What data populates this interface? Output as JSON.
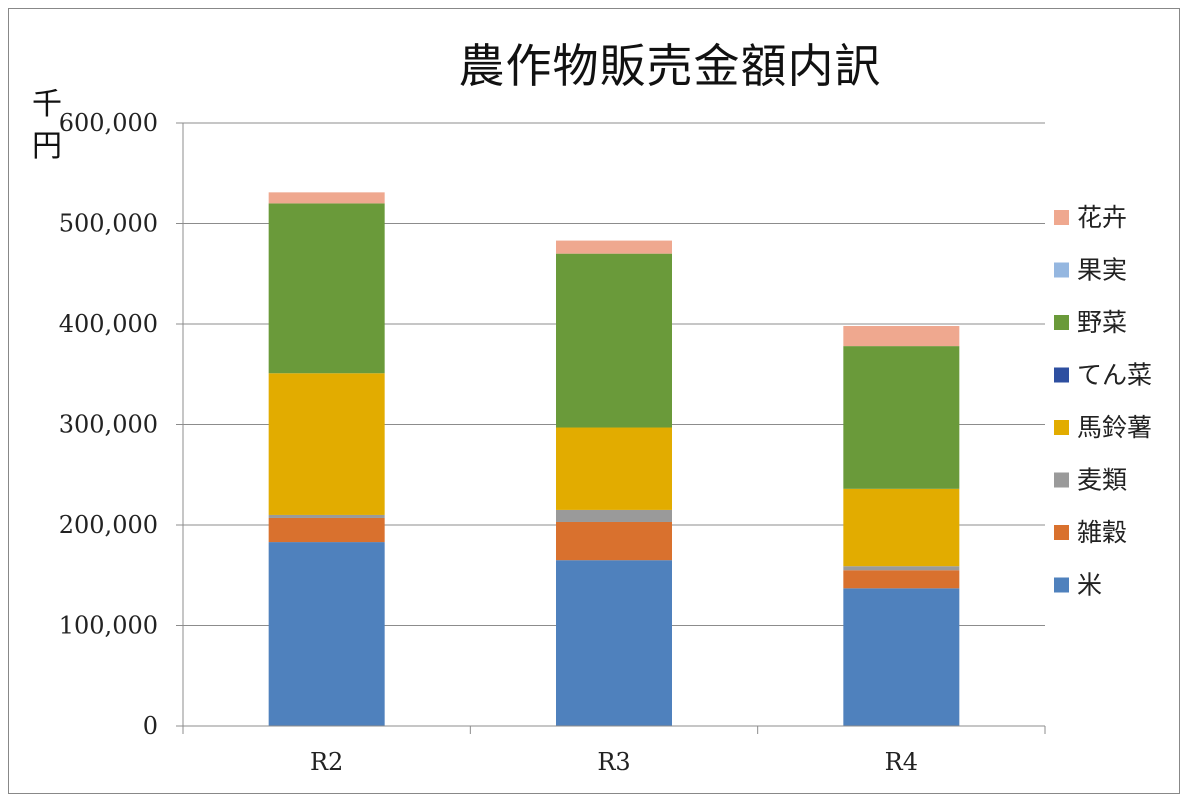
{
  "chart_data": {
    "type": "bar",
    "stacked": true,
    "title": "農作物販売金額内訳",
    "ylabel": "千円",
    "xlabel": "",
    "categories": [
      "R2",
      "R3",
      "R4"
    ],
    "ylim": [
      0,
      600000
    ],
    "yticks": [
      0,
      100000,
      200000,
      300000,
      400000,
      500000,
      600000
    ],
    "ytick_labels": [
      "0",
      "100,000",
      "200,000",
      "300,000",
      "400,000",
      "500,000",
      "600,000"
    ],
    "grid": true,
    "legend_position": "right",
    "series": [
      {
        "name": "米",
        "color": "#4F81BD",
        "values": [
          183000,
          165000,
          137000
        ]
      },
      {
        "name": "雑穀",
        "color": "#D9712E",
        "values": [
          24000,
          38000,
          18000
        ]
      },
      {
        "name": "麦類",
        "color": "#9A9A9A",
        "values": [
          3000,
          12000,
          4000
        ]
      },
      {
        "name": "馬鈴薯",
        "color": "#E2AC00",
        "values": [
          141000,
          82000,
          77000
        ]
      },
      {
        "name": "てん菜",
        "color": "#2E4FA0",
        "values": [
          0,
          0,
          0
        ]
      },
      {
        "name": "野菜",
        "color": "#6A9A3A",
        "values": [
          169000,
          173000,
          142000
        ]
      },
      {
        "name": "果実",
        "color": "#95B7E0",
        "values": [
          0,
          0,
          0
        ]
      },
      {
        "name": "花卉",
        "color": "#EFA88F",
        "values": [
          11000,
          13000,
          20000
        ]
      }
    ]
  }
}
